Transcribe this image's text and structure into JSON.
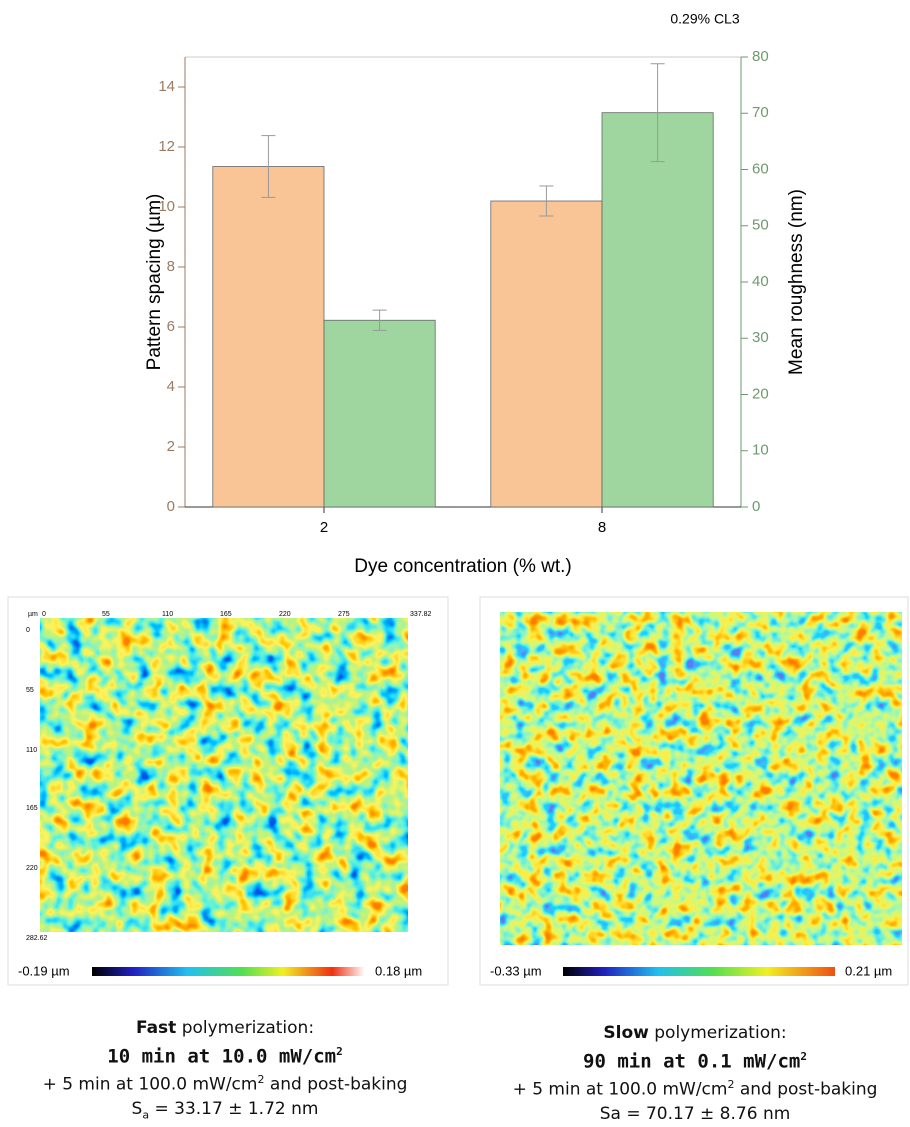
{
  "chart_data": {
    "type": "bar",
    "annotation": "0.29% CL3",
    "xlabel": "Dye concentration (% wt.)",
    "ylabel": "Pattern spacing (µm)",
    "y2label": "Mean roughness (nm)",
    "categories": [
      "2",
      "8"
    ],
    "series": [
      {
        "color": "#f9c597",
        "values": [
          11.35,
          10.2
        ],
        "errors": [
          1.03,
          0.5
        ]
      },
      {
        "color": "#9fd59f",
        "values": [
          33.2,
          70.1
        ],
        "errors": [
          1.8,
          8.7
        ],
        "axis": "y2"
      }
    ],
    "ylim": [
      0,
      15
    ],
    "yticks": [
      0,
      2,
      4,
      6,
      8,
      10,
      12,
      14
    ],
    "ycolor": "#9c7a62",
    "y2lim": [
      0,
      80
    ],
    "y2ticks": [
      0,
      10,
      20,
      30,
      40,
      50,
      60,
      70,
      80
    ],
    "y2color": "#6d9a6d"
  },
  "panels": [
    {
      "unit": "µm",
      "x_ticks": [
        "0",
        "55",
        "110",
        "165",
        "220",
        "275",
        "337.82"
      ],
      "y_ticks": [
        "0",
        "55",
        "110",
        "165",
        "220",
        "282.62"
      ],
      "scale_min": "-0.19 µm",
      "scale_max": "0.18 µm",
      "caption": {
        "speed": "Fast",
        "speed_rest": " polymerization:",
        "dose": "10 min at 10.0 mW/cm",
        "dose_exp": "2",
        "post": "+ 5 min at 100.0 mW/cm",
        "post_exp": "2",
        "post_rest": " and post-baking",
        "sa": "S",
        "sa_sub": "a",
        "sa_rest": " = 33.17 ± 1.72 nm"
      }
    },
    {
      "scale_min": "-0.33 µm",
      "scale_max": "0.21 µm",
      "caption": {
        "speed": "Slow",
        "speed_rest": " polymerization:",
        "dose": "90 min at 0.1 mW/cm",
        "dose_exp": "2",
        "post": "+ 5 min at 100.0 mW/cm",
        "post_exp": "2",
        "post_rest": " and post-baking",
        "sa": "Sa = 70.17 ± 8.76 nm"
      }
    }
  ]
}
